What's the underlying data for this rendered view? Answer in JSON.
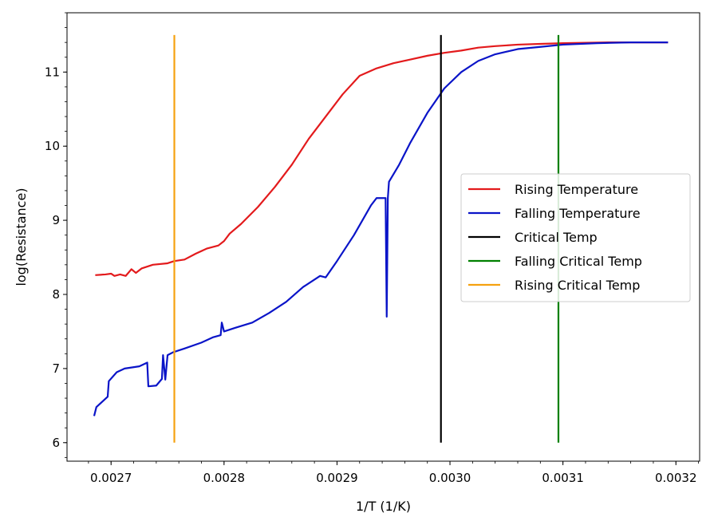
{
  "chart_data": {
    "type": "line",
    "title": "",
    "xlabel": "1/T (1/K)",
    "ylabel": "log(Resistance)",
    "xlim": [
      0.002661,
      0.003221
    ],
    "ylim": [
      5.75,
      11.8
    ],
    "x_ticks": [
      0.0027,
      0.0028,
      0.0029,
      0.003,
      0.0031,
      0.0032
    ],
    "x_tick_labels": [
      "0.0027",
      "0.0028",
      "0.0029",
      "0.0030",
      "0.0031",
      "0.0032"
    ],
    "y_ticks": [
      6,
      7,
      8,
      9,
      10,
      11
    ],
    "y_tick_labels": [
      "6",
      "7",
      "8",
      "9",
      "10",
      "11"
    ],
    "grid": false,
    "legend_position": "center-right",
    "series": [
      {
        "name": "Rising Temperature",
        "color": "#e31a1c",
        "points": [
          [
            0.002686,
            8.26
          ],
          [
            0.002695,
            8.27
          ],
          [
            0.0027,
            8.28
          ],
          [
            0.002703,
            8.25
          ],
          [
            0.002708,
            8.27
          ],
          [
            0.002713,
            8.25
          ],
          [
            0.002718,
            8.34
          ],
          [
            0.002722,
            8.29
          ],
          [
            0.002727,
            8.35
          ],
          [
            0.002737,
            8.4
          ],
          [
            0.00275,
            8.42
          ],
          [
            0.002756,
            8.45
          ],
          [
            0.002765,
            8.47
          ],
          [
            0.002775,
            8.55
          ],
          [
            0.002785,
            8.62
          ],
          [
            0.002795,
            8.66
          ],
          [
            0.0028,
            8.72
          ],
          [
            0.002805,
            8.82
          ],
          [
            0.002815,
            8.95
          ],
          [
            0.00283,
            9.18
          ],
          [
            0.002845,
            9.45
          ],
          [
            0.00286,
            9.75
          ],
          [
            0.002875,
            10.1
          ],
          [
            0.00289,
            10.4
          ],
          [
            0.002905,
            10.7
          ],
          [
            0.00292,
            10.95
          ],
          [
            0.002935,
            11.05
          ],
          [
            0.00295,
            11.12
          ],
          [
            0.002965,
            11.17
          ],
          [
            0.00298,
            11.22
          ],
          [
            0.002995,
            11.26
          ],
          [
            0.00301,
            11.29
          ],
          [
            0.003025,
            11.33
          ],
          [
            0.00304,
            11.35
          ],
          [
            0.00306,
            11.37
          ],
          [
            0.00308,
            11.38
          ],
          [
            0.0031,
            11.39
          ],
          [
            0.00314,
            11.4
          ],
          [
            0.003193,
            11.4
          ]
        ]
      },
      {
        "name": "Falling Temperature",
        "color": "#0a14c8",
        "points": [
          [
            0.002685,
            6.36
          ],
          [
            0.002687,
            6.48
          ],
          [
            0.002692,
            6.55
          ],
          [
            0.002697,
            6.62
          ],
          [
            0.002698,
            6.83
          ],
          [
            0.002705,
            6.95
          ],
          [
            0.002712,
            7.0
          ],
          [
            0.002725,
            7.03
          ],
          [
            0.002732,
            7.08
          ],
          [
            0.002733,
            6.76
          ],
          [
            0.00274,
            6.77
          ],
          [
            0.002745,
            6.86
          ],
          [
            0.002746,
            7.18
          ],
          [
            0.002748,
            6.85
          ],
          [
            0.00275,
            7.18
          ],
          [
            0.002755,
            7.22
          ],
          [
            0.002765,
            7.27
          ],
          [
            0.00278,
            7.35
          ],
          [
            0.00279,
            7.42
          ],
          [
            0.002797,
            7.45
          ],
          [
            0.002798,
            7.62
          ],
          [
            0.0028,
            7.5
          ],
          [
            0.00281,
            7.55
          ],
          [
            0.002825,
            7.62
          ],
          [
            0.00284,
            7.75
          ],
          [
            0.002855,
            7.9
          ],
          [
            0.00287,
            8.1
          ],
          [
            0.002885,
            8.25
          ],
          [
            0.00289,
            8.23
          ],
          [
            0.0029,
            8.45
          ],
          [
            0.002915,
            8.8
          ],
          [
            0.00293,
            9.2
          ],
          [
            0.002935,
            9.3
          ],
          [
            0.002943,
            9.3
          ],
          [
            0.002944,
            7.7
          ],
          [
            0.002945,
            9.3
          ],
          [
            0.002946,
            9.52
          ],
          [
            0.002955,
            9.75
          ],
          [
            0.002965,
            10.05
          ],
          [
            0.00298,
            10.45
          ],
          [
            0.002995,
            10.78
          ],
          [
            0.00301,
            11.0
          ],
          [
            0.003025,
            11.15
          ],
          [
            0.00304,
            11.24
          ],
          [
            0.00306,
            11.31
          ],
          [
            0.00308,
            11.34
          ],
          [
            0.0031,
            11.37
          ],
          [
            0.00313,
            11.39
          ],
          [
            0.00316,
            11.4
          ],
          [
            0.003193,
            11.4
          ]
        ]
      },
      {
        "name": "Critical Temp",
        "color": "#000000",
        "points": [
          [
            0.002992,
            6.0
          ],
          [
            0.002992,
            11.5
          ]
        ]
      },
      {
        "name": "Falling Critical Temp",
        "color": "#008000",
        "points": [
          [
            0.003096,
            6.0
          ],
          [
            0.003096,
            11.5
          ]
        ]
      },
      {
        "name": "Rising Critical Temp",
        "color": "#f5a10f",
        "points": [
          [
            0.002756,
            6.0
          ],
          [
            0.002756,
            11.5
          ]
        ]
      }
    ]
  }
}
